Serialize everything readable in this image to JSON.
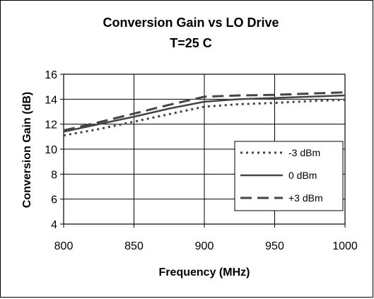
{
  "chart_data": {
    "type": "line",
    "title": "Conversion Gain vs LO Drive",
    "subtitle": "T=25 C",
    "xlabel": "Frequency (MHz)",
    "ylabel": "Conversion Gain (dB)",
    "xlim": [
      800,
      1000
    ],
    "ylim": [
      4,
      16
    ],
    "xticks": [
      800,
      850,
      900,
      950,
      1000
    ],
    "yticks": [
      4,
      6,
      8,
      10,
      12,
      14,
      16
    ],
    "grid": true,
    "legend_position": "bottom-right",
    "series": [
      {
        "name": "-3 dBm",
        "style": "dotted",
        "color": "#444444",
        "x": [
          800,
          825,
          850,
          875,
          900,
          925,
          950,
          975,
          1000
        ],
        "y": [
          11.1,
          11.6,
          12.2,
          12.8,
          13.4,
          13.6,
          13.7,
          13.85,
          13.95
        ]
      },
      {
        "name": "0 dBm",
        "style": "solid",
        "color": "#444444",
        "x": [
          800,
          825,
          850,
          875,
          900,
          925,
          950,
          975,
          1000
        ],
        "y": [
          11.4,
          12.0,
          12.6,
          13.25,
          13.8,
          14.0,
          14.1,
          14.2,
          14.3
        ]
      },
      {
        "name": "+3 dBm",
        "style": "dashed",
        "color": "#444444",
        "x": [
          800,
          825,
          850,
          875,
          900,
          925,
          950,
          975,
          1000
        ],
        "y": [
          11.5,
          12.15,
          12.85,
          13.55,
          14.2,
          14.3,
          14.35,
          14.45,
          14.55
        ]
      }
    ]
  }
}
